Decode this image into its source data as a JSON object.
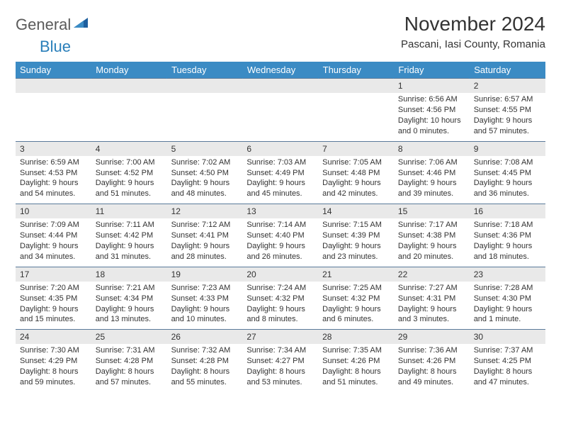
{
  "logo": {
    "general": "General",
    "blue": "Blue"
  },
  "title": "November 2024",
  "location": "Pascani, Iasi County, Romania",
  "calendar": {
    "header_bg": "#3b8bc4",
    "header_fg": "#ffffff",
    "daynum_bg": "#e9e9e9",
    "border_color": "#5a7a9a",
    "dow": [
      "Sunday",
      "Monday",
      "Tuesday",
      "Wednesday",
      "Thursday",
      "Friday",
      "Saturday"
    ],
    "weeks": [
      [
        null,
        null,
        null,
        null,
        null,
        {
          "n": "1",
          "sunrise": "Sunrise: 6:56 AM",
          "sunset": "Sunset: 4:56 PM",
          "day1": "Daylight: 10 hours",
          "day2": "and 0 minutes."
        },
        {
          "n": "2",
          "sunrise": "Sunrise: 6:57 AM",
          "sunset": "Sunset: 4:55 PM",
          "day1": "Daylight: 9 hours",
          "day2": "and 57 minutes."
        }
      ],
      [
        {
          "n": "3",
          "sunrise": "Sunrise: 6:59 AM",
          "sunset": "Sunset: 4:53 PM",
          "day1": "Daylight: 9 hours",
          "day2": "and 54 minutes."
        },
        {
          "n": "4",
          "sunrise": "Sunrise: 7:00 AM",
          "sunset": "Sunset: 4:52 PM",
          "day1": "Daylight: 9 hours",
          "day2": "and 51 minutes."
        },
        {
          "n": "5",
          "sunrise": "Sunrise: 7:02 AM",
          "sunset": "Sunset: 4:50 PM",
          "day1": "Daylight: 9 hours",
          "day2": "and 48 minutes."
        },
        {
          "n": "6",
          "sunrise": "Sunrise: 7:03 AM",
          "sunset": "Sunset: 4:49 PM",
          "day1": "Daylight: 9 hours",
          "day2": "and 45 minutes."
        },
        {
          "n": "7",
          "sunrise": "Sunrise: 7:05 AM",
          "sunset": "Sunset: 4:48 PM",
          "day1": "Daylight: 9 hours",
          "day2": "and 42 minutes."
        },
        {
          "n": "8",
          "sunrise": "Sunrise: 7:06 AM",
          "sunset": "Sunset: 4:46 PM",
          "day1": "Daylight: 9 hours",
          "day2": "and 39 minutes."
        },
        {
          "n": "9",
          "sunrise": "Sunrise: 7:08 AM",
          "sunset": "Sunset: 4:45 PM",
          "day1": "Daylight: 9 hours",
          "day2": "and 36 minutes."
        }
      ],
      [
        {
          "n": "10",
          "sunrise": "Sunrise: 7:09 AM",
          "sunset": "Sunset: 4:44 PM",
          "day1": "Daylight: 9 hours",
          "day2": "and 34 minutes."
        },
        {
          "n": "11",
          "sunrise": "Sunrise: 7:11 AM",
          "sunset": "Sunset: 4:42 PM",
          "day1": "Daylight: 9 hours",
          "day2": "and 31 minutes."
        },
        {
          "n": "12",
          "sunrise": "Sunrise: 7:12 AM",
          "sunset": "Sunset: 4:41 PM",
          "day1": "Daylight: 9 hours",
          "day2": "and 28 minutes."
        },
        {
          "n": "13",
          "sunrise": "Sunrise: 7:14 AM",
          "sunset": "Sunset: 4:40 PM",
          "day1": "Daylight: 9 hours",
          "day2": "and 26 minutes."
        },
        {
          "n": "14",
          "sunrise": "Sunrise: 7:15 AM",
          "sunset": "Sunset: 4:39 PM",
          "day1": "Daylight: 9 hours",
          "day2": "and 23 minutes."
        },
        {
          "n": "15",
          "sunrise": "Sunrise: 7:17 AM",
          "sunset": "Sunset: 4:38 PM",
          "day1": "Daylight: 9 hours",
          "day2": "and 20 minutes."
        },
        {
          "n": "16",
          "sunrise": "Sunrise: 7:18 AM",
          "sunset": "Sunset: 4:36 PM",
          "day1": "Daylight: 9 hours",
          "day2": "and 18 minutes."
        }
      ],
      [
        {
          "n": "17",
          "sunrise": "Sunrise: 7:20 AM",
          "sunset": "Sunset: 4:35 PM",
          "day1": "Daylight: 9 hours",
          "day2": "and 15 minutes."
        },
        {
          "n": "18",
          "sunrise": "Sunrise: 7:21 AM",
          "sunset": "Sunset: 4:34 PM",
          "day1": "Daylight: 9 hours",
          "day2": "and 13 minutes."
        },
        {
          "n": "19",
          "sunrise": "Sunrise: 7:23 AM",
          "sunset": "Sunset: 4:33 PM",
          "day1": "Daylight: 9 hours",
          "day2": "and 10 minutes."
        },
        {
          "n": "20",
          "sunrise": "Sunrise: 7:24 AM",
          "sunset": "Sunset: 4:32 PM",
          "day1": "Daylight: 9 hours",
          "day2": "and 8 minutes."
        },
        {
          "n": "21",
          "sunrise": "Sunrise: 7:25 AM",
          "sunset": "Sunset: 4:32 PM",
          "day1": "Daylight: 9 hours",
          "day2": "and 6 minutes."
        },
        {
          "n": "22",
          "sunrise": "Sunrise: 7:27 AM",
          "sunset": "Sunset: 4:31 PM",
          "day1": "Daylight: 9 hours",
          "day2": "and 3 minutes."
        },
        {
          "n": "23",
          "sunrise": "Sunrise: 7:28 AM",
          "sunset": "Sunset: 4:30 PM",
          "day1": "Daylight: 9 hours",
          "day2": "and 1 minute."
        }
      ],
      [
        {
          "n": "24",
          "sunrise": "Sunrise: 7:30 AM",
          "sunset": "Sunset: 4:29 PM",
          "day1": "Daylight: 8 hours",
          "day2": "and 59 minutes."
        },
        {
          "n": "25",
          "sunrise": "Sunrise: 7:31 AM",
          "sunset": "Sunset: 4:28 PM",
          "day1": "Daylight: 8 hours",
          "day2": "and 57 minutes."
        },
        {
          "n": "26",
          "sunrise": "Sunrise: 7:32 AM",
          "sunset": "Sunset: 4:28 PM",
          "day1": "Daylight: 8 hours",
          "day2": "and 55 minutes."
        },
        {
          "n": "27",
          "sunrise": "Sunrise: 7:34 AM",
          "sunset": "Sunset: 4:27 PM",
          "day1": "Daylight: 8 hours",
          "day2": "and 53 minutes."
        },
        {
          "n": "28",
          "sunrise": "Sunrise: 7:35 AM",
          "sunset": "Sunset: 4:26 PM",
          "day1": "Daylight: 8 hours",
          "day2": "and 51 minutes."
        },
        {
          "n": "29",
          "sunrise": "Sunrise: 7:36 AM",
          "sunset": "Sunset: 4:26 PM",
          "day1": "Daylight: 8 hours",
          "day2": "and 49 minutes."
        },
        {
          "n": "30",
          "sunrise": "Sunrise: 7:37 AM",
          "sunset": "Sunset: 4:25 PM",
          "day1": "Daylight: 8 hours",
          "day2": "and 47 minutes."
        }
      ]
    ]
  }
}
